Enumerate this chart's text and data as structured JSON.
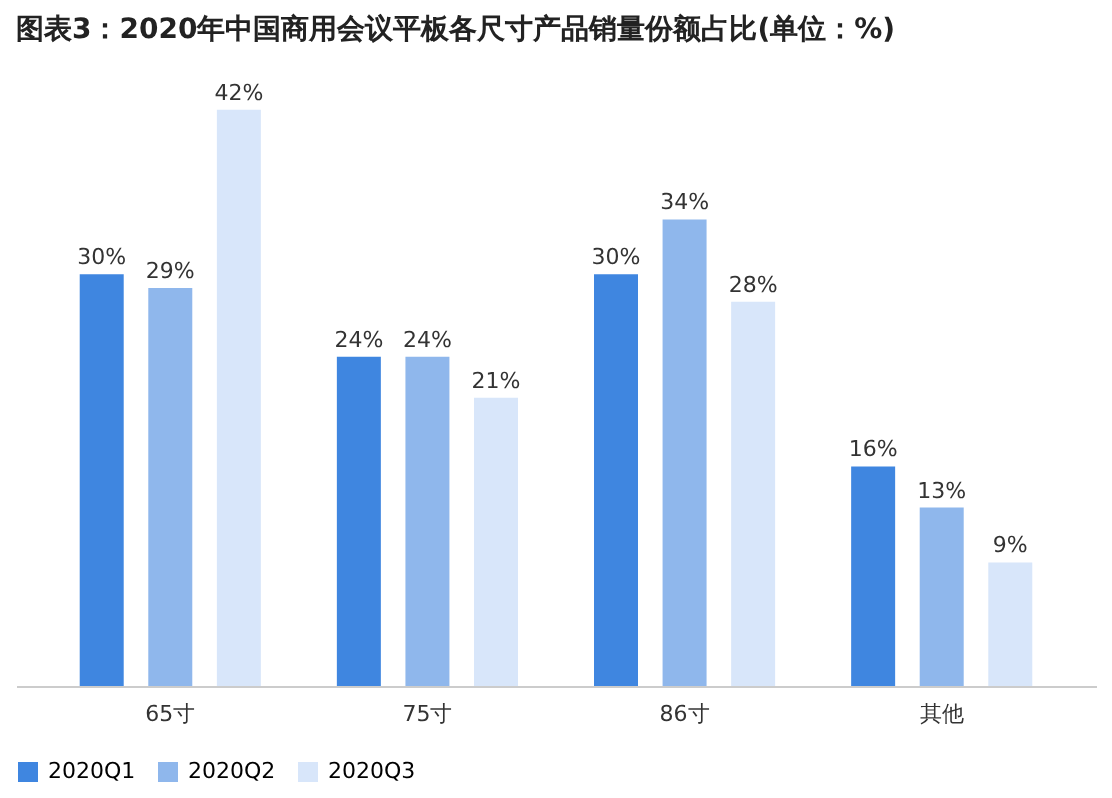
{
  "chart_data": {
    "type": "bar",
    "title": "图表3：2020年中国商用会议平板各尺寸产品销量份额占比(单位：%)",
    "categories": [
      "65寸",
      "75寸",
      "86寸",
      "其他"
    ],
    "series": [
      {
        "name": "2020Q1",
        "color": "#3f86e0",
        "values": [
          30,
          24,
          30,
          16
        ],
        "value_labels": [
          "30%",
          "24%",
          "30%",
          "16%"
        ]
      },
      {
        "name": "2020Q2",
        "color": "#8fb7ec",
        "values": [
          29,
          24,
          34,
          13
        ],
        "value_labels": [
          "29%",
          "24%",
          "34%",
          "13%"
        ]
      },
      {
        "name": "2020Q3",
        "color": "#d8e6fa",
        "values": [
          42,
          21,
          28,
          9
        ],
        "value_labels": [
          "42%",
          "21%",
          "28%",
          "9%"
        ]
      }
    ],
    "legend": "bottom",
    "grid": false
  }
}
